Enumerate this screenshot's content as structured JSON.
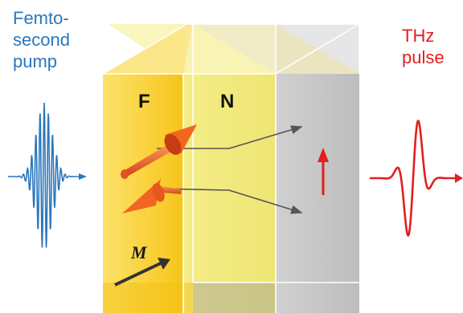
{
  "labels": {
    "pump": "Femto-\nsecond\npump",
    "thz": "THz\npulse",
    "ferromagnet": "F",
    "nonmagnet": "N",
    "magnetization": "M"
  },
  "colors": {
    "pump_wave": "#2a77bd",
    "thz_wave": "#e41e1e",
    "ferromagnet_layer": "#f7cf1c",
    "nonmagnet_layer": "#f2ea86",
    "substrate": "#c4c4c4",
    "spin_arrow": "#f26522",
    "electron_path": "#555555"
  },
  "icons": {
    "pump": "wave-packet-icon",
    "thz": "single-cycle-pulse-icon",
    "spin_up": "cone-arrow-icon",
    "spin_down": "cone-arrow-icon",
    "magnetization": "arrow-icon",
    "current": "arrow-up-icon"
  }
}
